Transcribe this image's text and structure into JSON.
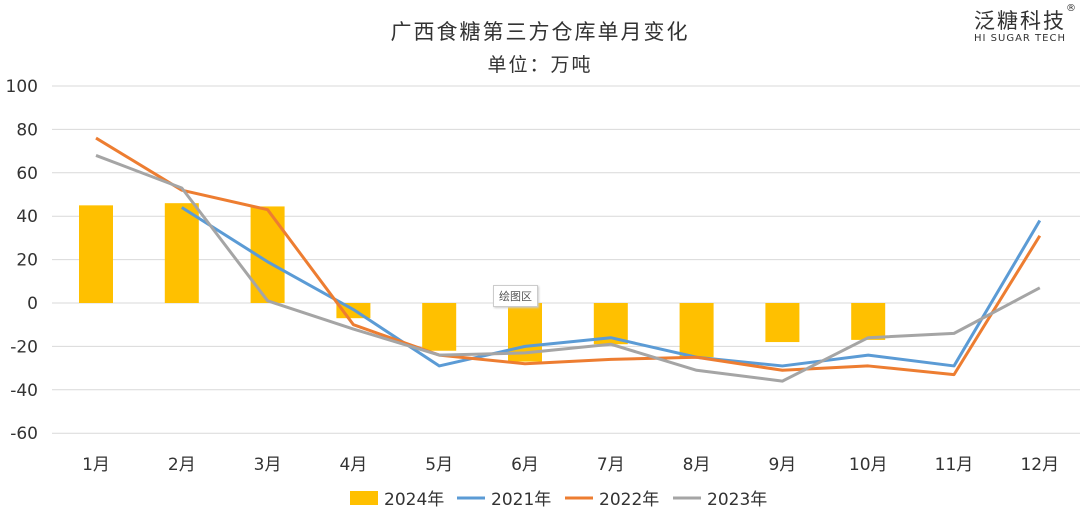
{
  "chart_data": {
    "type": "bar+line",
    "title": "广西食糖第三方仓库单月变化",
    "subtitle": "单位：万吨",
    "categories": [
      "1月",
      "2月",
      "3月",
      "4月",
      "5月",
      "6月",
      "7月",
      "8月",
      "9月",
      "10月",
      "11月",
      "12月"
    ],
    "ylim": [
      -60,
      100
    ],
    "yticks": [
      -60,
      -40,
      -20,
      0,
      20,
      40,
      60,
      80,
      100
    ],
    "grid": true,
    "legend_position": "bottom",
    "series": [
      {
        "name": "2024年",
        "type": "bar",
        "color": "#FFC000",
        "values": [
          45,
          46,
          44.5,
          -7,
          -22,
          -27,
          -19,
          -25,
          -18,
          -17,
          null,
          null
        ]
      },
      {
        "name": "2021年",
        "type": "line",
        "color": "#5B9BD5",
        "values": [
          null,
          44,
          19,
          -3,
          -29,
          -20,
          -16,
          -25,
          -29,
          -24,
          -29,
          38
        ]
      },
      {
        "name": "2022年",
        "type": "line",
        "color": "#ED7D31",
        "values": [
          76,
          52,
          43,
          -10,
          -24,
          -28,
          -26,
          -25,
          -31,
          -29,
          -33,
          31
        ]
      },
      {
        "name": "2023年",
        "type": "line",
        "color": "#A5A5A5",
        "values": [
          68,
          53,
          1,
          -12,
          -24,
          -23,
          -19,
          -31,
          -36,
          -16,
          -14,
          7
        ]
      }
    ]
  },
  "logo": {
    "cn": "泛糖科技",
    "en": "HI SUGAR TECH",
    "reg": "®"
  },
  "tooltip": "绘图区"
}
